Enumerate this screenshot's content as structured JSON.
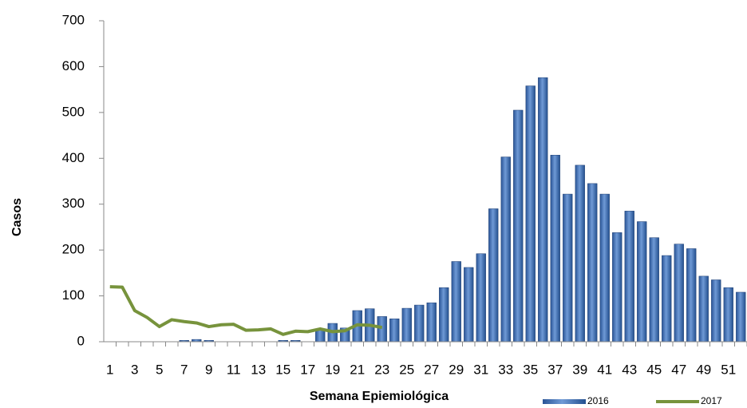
{
  "chart_data": {
    "type": "bar",
    "x_label": "Semana Epiemiológica",
    "y_label": "Casos",
    "categories": [
      1,
      null,
      3,
      null,
      5,
      null,
      7,
      null,
      9,
      null,
      11,
      null,
      13,
      null,
      15,
      null,
      17,
      null,
      19,
      null,
      21,
      null,
      23,
      null,
      25,
      null,
      27,
      null,
      29,
      null,
      31,
      null,
      33,
      null,
      35,
      null,
      37,
      null,
      39,
      null,
      41,
      null,
      43,
      null,
      45,
      null,
      47,
      null,
      49,
      null,
      51,
      null
    ],
    "series": [
      {
        "name": "2016",
        "type": "bar",
        "color": "#3a6db3",
        "values": [
          0,
          0,
          0,
          0,
          0,
          0,
          3,
          5,
          3,
          0,
          0,
          0,
          0,
          0,
          3,
          3,
          0,
          28,
          40,
          30,
          68,
          72,
          55,
          50,
          73,
          80,
          85,
          118,
          175,
          162,
          192,
          290,
          403,
          505,
          558,
          576,
          407,
          322,
          385,
          345,
          322,
          238,
          285,
          262,
          227,
          188,
          213,
          203,
          143,
          135,
          118,
          108
        ]
      },
      {
        "name": "2017",
        "type": "line",
        "color": "#77933c",
        "values": [
          120,
          119,
          68,
          53,
          33,
          48,
          44,
          41,
          33,
          37,
          38,
          25,
          26,
          28,
          16,
          23,
          22,
          28,
          22,
          24,
          37,
          36,
          31,
          null,
          null,
          null,
          null,
          null,
          null,
          null,
          null,
          null,
          null,
          null,
          null,
          null,
          null,
          null,
          null,
          null,
          null,
          null,
          null,
          null,
          null,
          null,
          null,
          null,
          null,
          null,
          null,
          null
        ]
      }
    ],
    "ylim": [
      0,
      700
    ],
    "yticks": [
      0,
      100,
      200,
      300,
      400,
      500,
      600,
      700
    ]
  }
}
